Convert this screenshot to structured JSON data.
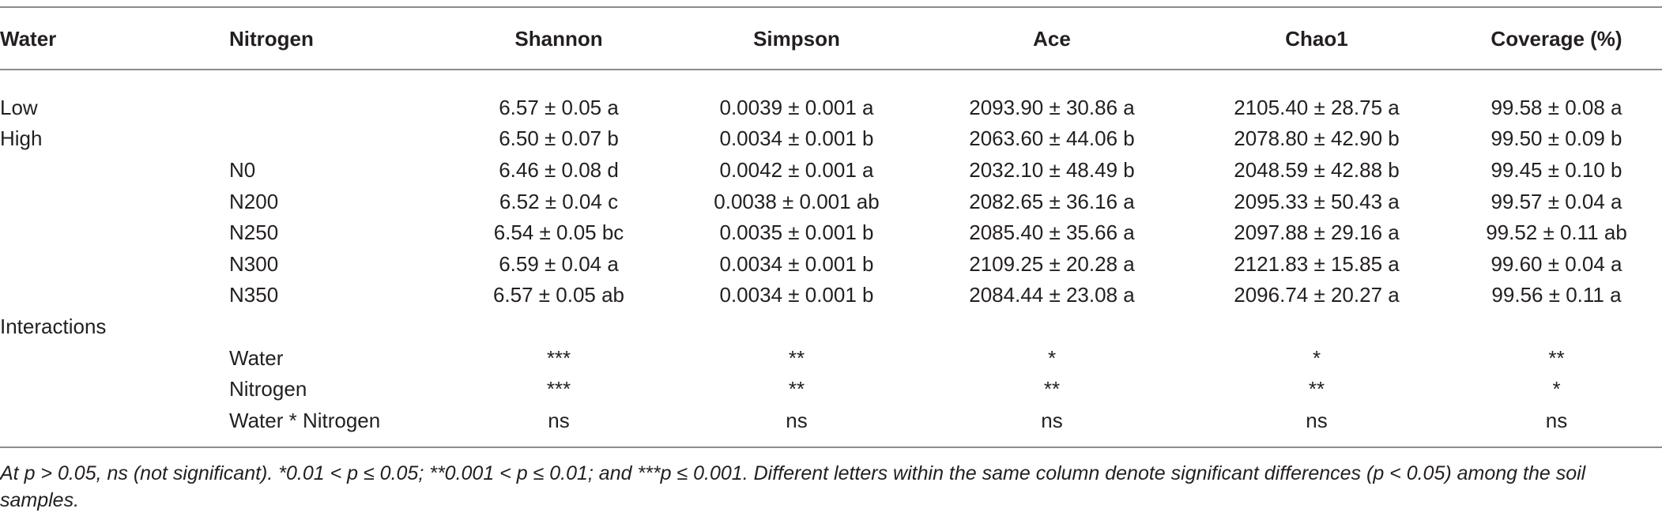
{
  "headers": [
    "Water",
    "Nitrogen",
    "Shannon",
    "Simpson",
    "Ace",
    "Chao1",
    "Coverage (%)"
  ],
  "rows": [
    [
      "Low",
      "",
      "6.57 ± 0.05 a",
      "0.0039 ± 0.001 a",
      "2093.90 ± 30.86 a",
      "2105.40 ± 28.75 a",
      "99.58 ± 0.08 a"
    ],
    [
      "High",
      "",
      "6.50 ± 0.07 b",
      "0.0034 ± 0.001 b",
      "2063.60 ± 44.06 b",
      "2078.80 ± 42.90 b",
      "99.50 ± 0.09 b"
    ],
    [
      "",
      "N0",
      "6.46 ± 0.08 d",
      "0.0042 ± 0.001 a",
      "2032.10 ± 48.49 b",
      "2048.59 ± 42.88 b",
      "99.45 ± 0.10 b"
    ],
    [
      "",
      "N200",
      "6.52 ± 0.04 c",
      "0.0038 ± 0.001 ab",
      "2082.65 ± 36.16 a",
      "2095.33 ± 50.43 a",
      "99.57 ± 0.04 a"
    ],
    [
      "",
      "N250",
      "6.54 ± 0.05 bc",
      "0.0035 ± 0.001 b",
      "2085.40 ± 35.66 a",
      "2097.88 ± 29.16 a",
      "99.52 ± 0.11 ab"
    ],
    [
      "",
      "N300",
      "6.59 ± 0.04 a",
      "0.0034 ± 0.001 b",
      "2109.25 ± 20.28 a",
      "2121.83 ± 15.85 a",
      "99.60 ± 0.04 a"
    ],
    [
      "",
      "N350",
      "6.57 ± 0.05 ab",
      "0.0034 ± 0.001 b",
      "2084.44 ± 23.08 a",
      "2096.74 ± 20.27 a",
      "99.56 ± 0.11 a"
    ],
    [
      "Interactions",
      "",
      "",
      "",
      "",
      "",
      ""
    ],
    [
      "",
      "Water",
      "***",
      "**",
      "*",
      "*",
      "**"
    ],
    [
      "",
      "Nitrogen",
      "***",
      "**",
      "**",
      "**",
      "*"
    ],
    [
      "",
      "Water * Nitrogen",
      "ns",
      "ns",
      "ns",
      "ns",
      "ns"
    ]
  ],
  "footnote": "At p > 0.05, ns (not significant). *0.01 < p ≤ 0.05; **0.001 < p ≤ 0.01; and ***p ≤ 0.001. Different letters within the same column denote significant differences (p < 0.05) among the soil samples."
}
